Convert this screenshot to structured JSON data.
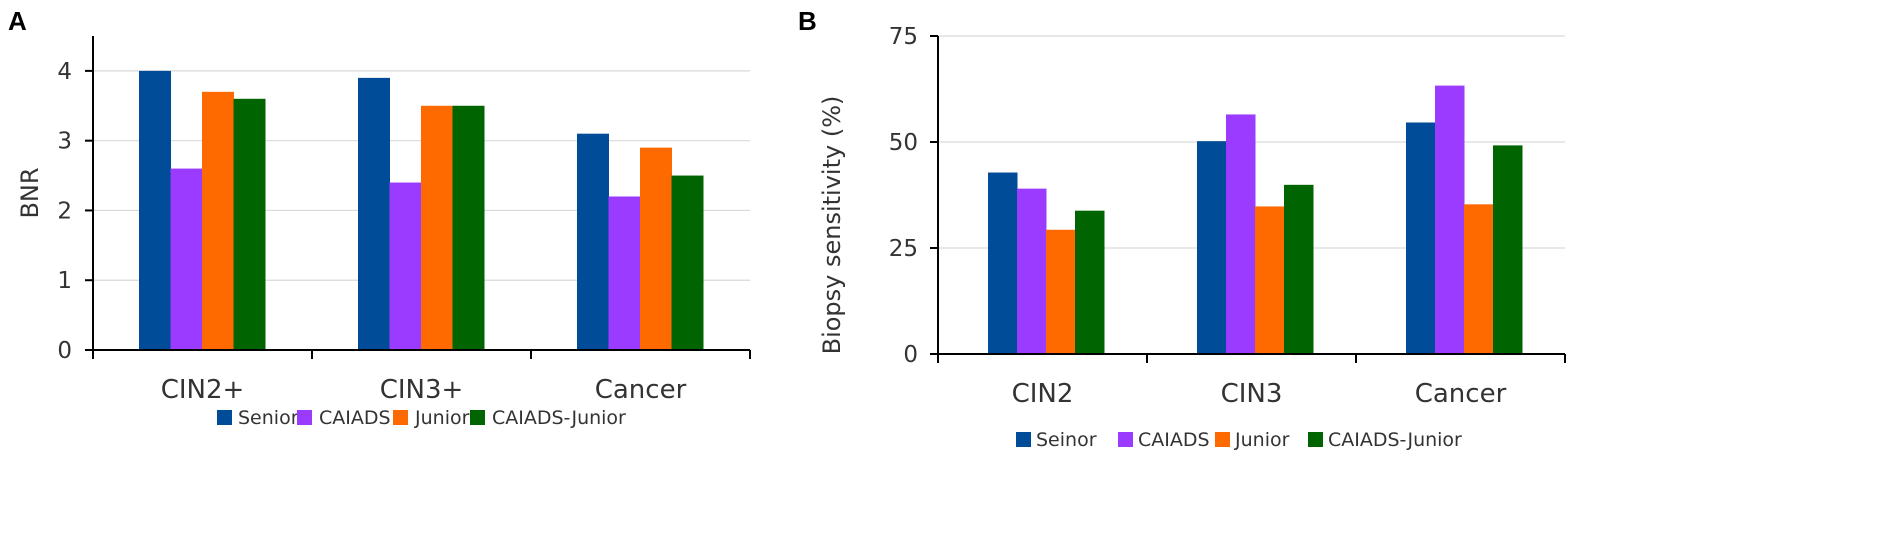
{
  "chart_data": [
    {
      "panel": "A",
      "type": "bar",
      "title": "",
      "xlabel": "",
      "ylabel": "BNR",
      "ylim": [
        0,
        4.5
      ],
      "yticks": [
        0,
        1,
        2,
        3,
        4
      ],
      "grid": true,
      "legend_position": "bottom",
      "categories": [
        "CIN2+",
        "CIN3+",
        "Cancer"
      ],
      "series": [
        {
          "name": "Senior",
          "color": "#004C99",
          "values": [
            4.0,
            3.9,
            3.1
          ]
        },
        {
          "name": "CAIADS",
          "color": "#9B3BFF",
          "values": [
            2.6,
            2.4,
            2.2
          ]
        },
        {
          "name": "Junior",
          "color": "#FF6A00",
          "values": [
            3.7,
            3.5,
            2.9
          ]
        },
        {
          "name": "CAIADS-Junior",
          "color": "#006400",
          "values": [
            3.6,
            3.5,
            2.5
          ]
        }
      ]
    },
    {
      "panel": "B",
      "type": "bar",
      "title": "",
      "xlabel": "",
      "ylabel": "Biopsy sensitivity (%)",
      "ylim": [
        0,
        75
      ],
      "yticks": [
        0,
        25,
        50,
        75
      ],
      "grid": true,
      "legend_position": "bottom",
      "categories": [
        "CIN2",
        "CIN3",
        "Cancer"
      ],
      "series": [
        {
          "name": "Seinor",
          "color": "#004C99",
          "values": [
            42.8,
            50.2,
            54.6
          ]
        },
        {
          "name": "CAIADS",
          "color": "#9B3BFF",
          "values": [
            39.0,
            56.5,
            63.3
          ]
        },
        {
          "name": "Junior",
          "color": "#FF6A00",
          "values": [
            29.3,
            34.8,
            35.3
          ]
        },
        {
          "name": "CAIADS-Junior",
          "color": "#006400",
          "values": [
            33.8,
            39.9,
            49.2
          ]
        }
      ]
    }
  ]
}
